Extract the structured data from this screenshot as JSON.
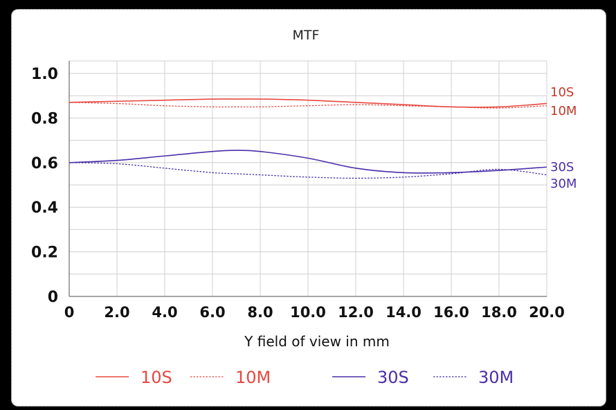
{
  "chart_data": {
    "type": "line",
    "title": "MTF",
    "xlabel": "Y field of view in mm",
    "ylabel": "",
    "xlim": [
      0,
      20
    ],
    "ylim": [
      0,
      1.0
    ],
    "x_ticks": [
      "0",
      "2.0",
      "4.0",
      "6.0",
      "8.0",
      "10.0",
      "12.0",
      "14.0",
      "16.0",
      "18.0",
      "20.0"
    ],
    "y_ticks": [
      "0",
      "0.2",
      "0.4",
      "0.6",
      "0.8",
      "1.0"
    ],
    "grid": true,
    "legend_placement": "bottom",
    "x": [
      0,
      2,
      4,
      6,
      7,
      8,
      10,
      12,
      14,
      16,
      18,
      20
    ],
    "series": [
      {
        "name": "10S",
        "color": "#e8473f",
        "style": "solid",
        "values": [
          0.87,
          0.875,
          0.88,
          0.885,
          0.885,
          0.885,
          0.88,
          0.87,
          0.86,
          0.85,
          0.85,
          0.865
        ]
      },
      {
        "name": "10M",
        "color": "#e8473f",
        "style": "dotted",
        "values": [
          0.87,
          0.865,
          0.855,
          0.85,
          0.85,
          0.85,
          0.855,
          0.86,
          0.855,
          0.85,
          0.845,
          0.855
        ]
      },
      {
        "name": "30S",
        "color": "#4a2ea8",
        "style": "solid",
        "values": [
          0.6,
          0.61,
          0.63,
          0.65,
          0.655,
          0.65,
          0.62,
          0.575,
          0.555,
          0.555,
          0.565,
          0.58
        ]
      },
      {
        "name": "30M",
        "color": "#4a2ea8",
        "style": "dotted",
        "values": [
          0.6,
          0.595,
          0.575,
          0.555,
          0.55,
          0.545,
          0.535,
          0.53,
          0.535,
          0.55,
          0.57,
          0.545
        ]
      }
    ],
    "end_labels": [
      {
        "text": "10S",
        "color": "#c0392b"
      },
      {
        "text": "10M",
        "color": "#c0392b"
      },
      {
        "text": "30S",
        "color": "#4a2ea8"
      },
      {
        "text": "30M",
        "color": "#4a2ea8"
      }
    ]
  }
}
